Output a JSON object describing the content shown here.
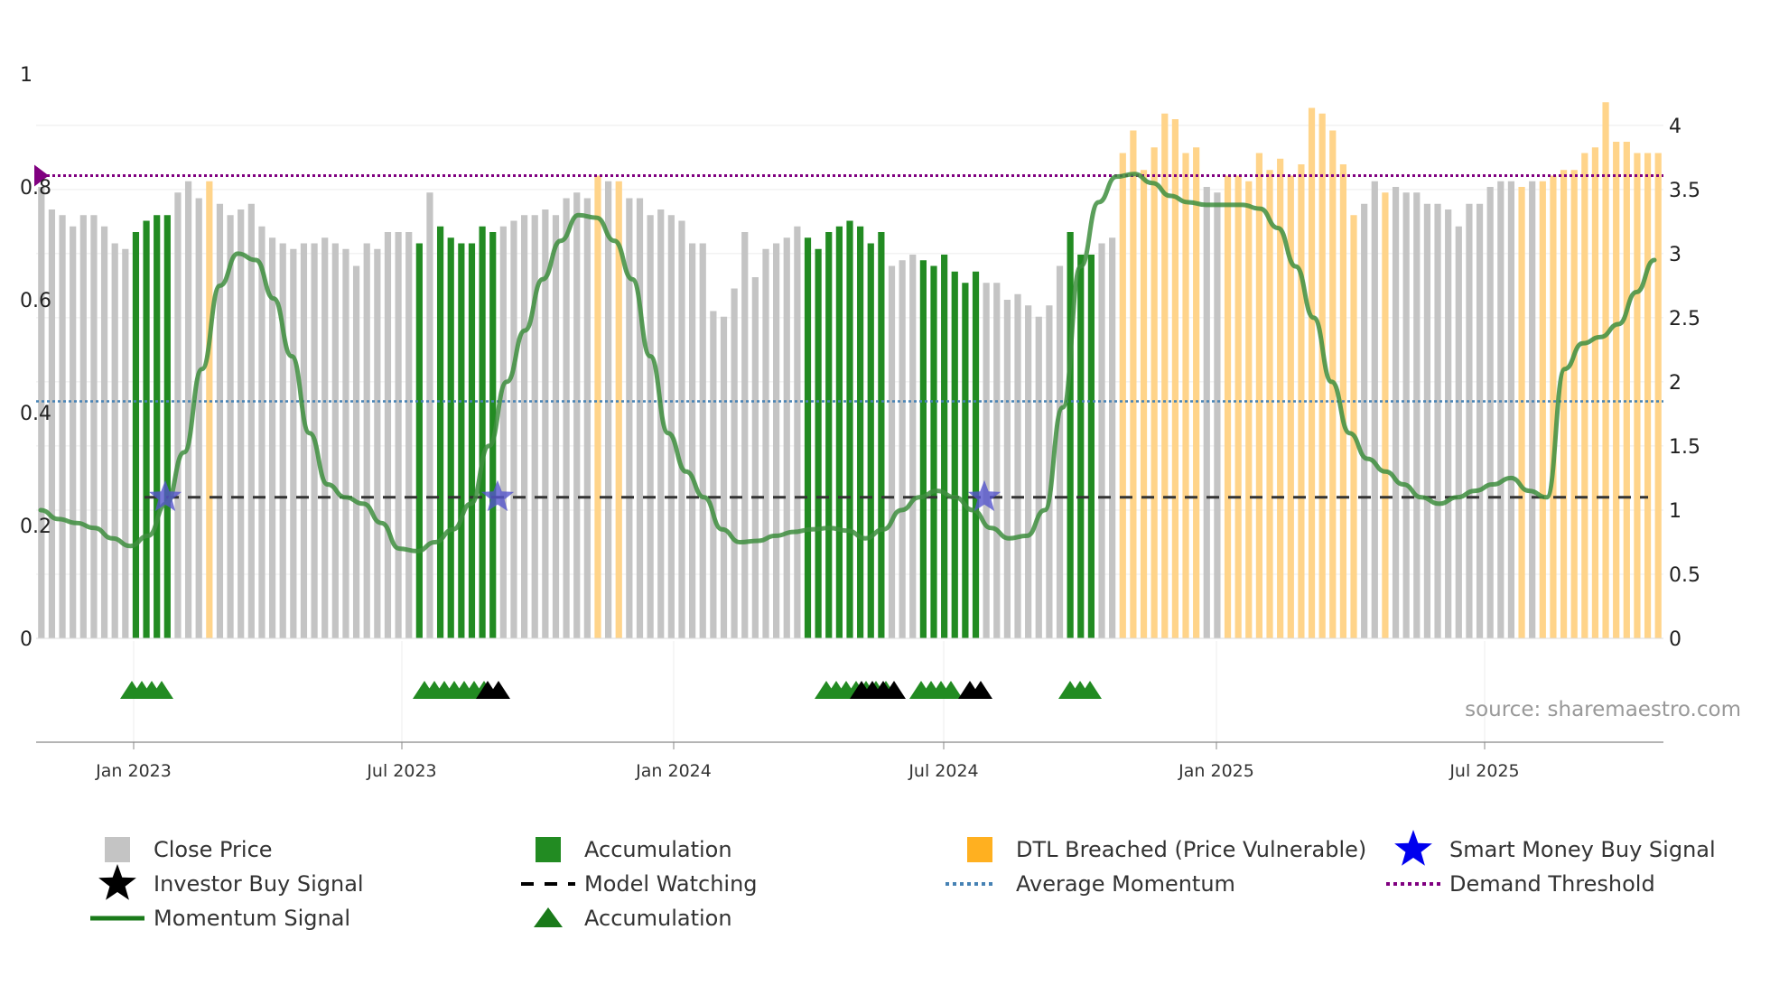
{
  "chart_data": {
    "type": "bar",
    "title": "",
    "source": "source: sharemaestro.com",
    "left_axis": {
      "ticks": [
        "0",
        "0.2",
        "0.4",
        "0.6",
        "0.8",
        "1"
      ],
      "range": [
        0,
        1
      ]
    },
    "right_axis": {
      "ticks": [
        "0",
        "0.5",
        "1",
        "1.5",
        "2",
        "2.5",
        "3",
        "3.5",
        "4"
      ],
      "range": [
        0,
        4.4
      ]
    },
    "x_ticks": [
      "Jan 2023",
      "Jul 2023",
      "Jan 2024",
      "Jul 2024",
      "Jan 2025",
      "Jul 2025"
    ],
    "bar_categories": [
      "gray",
      "green",
      "orange"
    ],
    "bar_values": [
      0.8,
      0.76,
      0.75,
      0.73,
      0.75,
      0.75,
      0.73,
      0.7,
      0.69,
      0.72,
      0.74,
      0.75,
      0.75,
      0.79,
      0.81,
      0.78,
      0.81,
      0.77,
      0.75,
      0.76,
      0.77,
      0.73,
      0.71,
      0.7,
      0.69,
      0.7,
      0.7,
      0.71,
      0.7,
      0.69,
      0.66,
      0.7,
      0.69,
      0.72,
      0.72,
      0.72,
      0.7,
      0.79,
      0.73,
      0.71,
      0.7,
      0.7,
      0.73,
      0.72,
      0.73,
      0.74,
      0.75,
      0.75,
      0.76,
      0.75,
      0.78,
      0.79,
      0.78,
      0.82,
      0.81,
      0.81,
      0.78,
      0.78,
      0.75,
      0.76,
      0.75,
      0.74,
      0.7,
      0.7,
      0.58,
      0.57,
      0.62,
      0.72,
      0.64,
      0.69,
      0.7,
      0.71,
      0.73,
      0.71,
      0.69,
      0.72,
      0.73,
      0.74,
      0.73,
      0.7,
      0.72,
      0.66,
      0.67,
      0.68,
      0.67,
      0.66,
      0.68,
      0.65,
      0.63,
      0.65,
      0.63,
      0.63,
      0.6,
      0.61,
      0.59,
      0.57,
      0.59,
      0.66,
      0.72,
      0.68,
      0.68,
      0.7,
      0.71,
      0.86,
      0.9,
      0.83,
      0.87,
      0.93,
      0.92,
      0.86,
      0.87,
      0.8,
      0.79,
      0.82,
      0.82,
      0.81,
      0.86,
      0.83,
      0.85,
      0.82,
      0.84,
      0.94,
      0.93,
      0.9,
      0.84,
      0.75,
      0.77,
      0.81,
      0.79,
      0.8,
      0.79,
      0.79,
      0.77,
      0.77,
      0.76,
      0.73,
      0.77,
      0.77,
      0.8,
      0.81,
      0.81,
      0.8,
      0.81,
      0.81,
      0.82,
      0.83,
      0.83,
      0.86,
      0.87,
      0.95,
      0.88,
      0.88,
      0.86,
      0.86,
      0.86
    ],
    "bar_kinds": [
      0,
      0,
      0,
      0,
      0,
      0,
      0,
      0,
      0,
      1,
      1,
      1,
      1,
      0,
      0,
      0,
      2,
      0,
      0,
      0,
      0,
      0,
      0,
      0,
      0,
      0,
      0,
      0,
      0,
      0,
      0,
      0,
      0,
      0,
      0,
      0,
      1,
      0,
      1,
      1,
      1,
      1,
      1,
      1,
      0,
      0,
      0,
      0,
      0,
      0,
      0,
      0,
      0,
      2,
      0,
      2,
      0,
      0,
      0,
      0,
      0,
      0,
      0,
      0,
      0,
      0,
      0,
      0,
      0,
      0,
      0,
      0,
      0,
      1,
      1,
      1,
      1,
      1,
      1,
      1,
      1,
      0,
      0,
      0,
      1,
      1,
      1,
      1,
      1,
      1,
      0,
      0,
      0,
      0,
      0,
      0,
      0,
      0,
      1,
      1,
      1,
      0,
      0,
      2,
      2,
      2,
      2,
      2,
      2,
      2,
      2,
      0,
      0,
      2,
      2,
      2,
      2,
      2,
      2,
      2,
      2,
      2,
      2,
      2,
      2,
      2,
      0,
      0,
      2,
      0,
      0,
      0,
      0,
      0,
      0,
      0,
      0,
      0,
      0,
      0,
      0,
      2,
      0,
      2,
      2,
      2,
      2,
      2,
      2,
      2,
      2,
      2,
      2,
      2,
      2
    ],
    "momentum": [
      1.0,
      0.93,
      0.9,
      0.86,
      0.78,
      0.72,
      0.8,
      1.05,
      1.45,
      2.1,
      2.75,
      3.0,
      2.95,
      2.65,
      2.2,
      1.6,
      1.2,
      1.1,
      1.05,
      0.9,
      0.7,
      0.68,
      0.75,
      0.85,
      1.05,
      1.5,
      2.0,
      2.4,
      2.8,
      3.1,
      3.3,
      3.28,
      3.1,
      2.8,
      2.2,
      1.6,
      1.3,
      1.1,
      0.85,
      0.75,
      0.76,
      0.8,
      0.83,
      0.85,
      0.86,
      0.84,
      0.78,
      0.85,
      1.0,
      1.1,
      1.15,
      1.1,
      1.0,
      0.86,
      0.78,
      0.8,
      1.0,
      1.8,
      2.9,
      3.4,
      3.6,
      3.62,
      3.55,
      3.45,
      3.4,
      3.38,
      3.38,
      3.38,
      3.35,
      3.2,
      2.9,
      2.5,
      2.0,
      1.6,
      1.4,
      1.3,
      1.2,
      1.1,
      1.05,
      1.1,
      1.15,
      1.2,
      1.25,
      1.15,
      1.1,
      2.1,
      2.3,
      2.35,
      2.45,
      2.7,
      2.95
    ],
    "demand_threshold": 0.82,
    "average_momentum": 0.42,
    "model_watching_level": 0.25,
    "smart_money_signals_x": [
      "Feb 2023",
      "Sep 2023",
      "Aug 2024"
    ],
    "accumulation_triangle_groups": [
      4,
      7,
      7,
      4,
      3
    ],
    "investor_buy_triangle_groups": [
      2,
      4,
      2
    ]
  },
  "legend": {
    "items": [
      {
        "label": "Close Price"
      },
      {
        "label": "Accumulation"
      },
      {
        "label": "DTL Breached (Price Vulnerable)"
      },
      {
        "label": "Smart Money Buy Signal"
      },
      {
        "label": "Investor Buy Signal"
      },
      {
        "label": "Model Watching"
      },
      {
        "label": "Average Momentum"
      },
      {
        "label": "Demand Threshold"
      },
      {
        "label": "Momentum Signal"
      },
      {
        "label": "Accumulation"
      }
    ]
  },
  "colors": {
    "gray": "#c4c4c4",
    "green": "#228b22",
    "orange": "#ffd48a",
    "momentum": "#3e8e3e",
    "demand": "#800080",
    "average": "#4682b4",
    "watching": "#333333",
    "smart_money": "#5555cc"
  }
}
